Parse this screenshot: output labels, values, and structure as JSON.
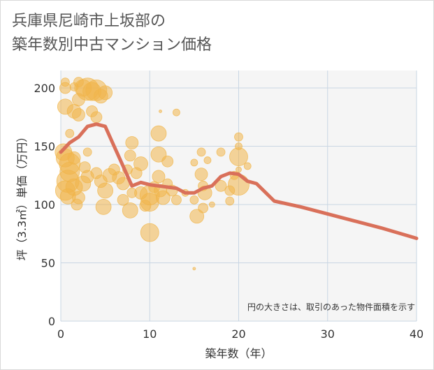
{
  "title_line1": "兵庫県尼崎市上坂部の",
  "title_line2": "築年数別中古マンション価格",
  "chart_data": {
    "type": "scatter",
    "title": "兵庫県尼崎市上坂部の築年数別中古マンション価格",
    "xlabel": "築年数（年）",
    "ylabel": "坪（3.3㎡）単価（万円）",
    "xlim": [
      0,
      40
    ],
    "ylim": [
      0,
      215
    ],
    "xticks": [
      0,
      10,
      20,
      30,
      40
    ],
    "yticks": [
      0,
      50,
      100,
      150,
      200
    ],
    "grid": true,
    "note": "円の大きさは、取引のあった物件面積を示す",
    "colors": {
      "bubble": "#f0b54a",
      "line": "#d9705a",
      "grid": "#c9d6e3",
      "plot_bg": "#f5f5f5"
    },
    "series": [
      {
        "kind": "bubble",
        "points": [
          {
            "x": 0.5,
            "y": 205,
            "s": 6
          },
          {
            "x": 0.5,
            "y": 200,
            "s": 8
          },
          {
            "x": 1.5,
            "y": 201,
            "s": 6
          },
          {
            "x": 2,
            "y": 205,
            "s": 7
          },
          {
            "x": 2.5,
            "y": 200,
            "s": 12
          },
          {
            "x": 3,
            "y": 199,
            "s": 16
          },
          {
            "x": 3.5,
            "y": 197,
            "s": 13
          },
          {
            "x": 4,
            "y": 198,
            "s": 15
          },
          {
            "x": 4.5,
            "y": 193,
            "s": 10
          },
          {
            "x": 5,
            "y": 196,
            "s": 10
          },
          {
            "x": 2,
            "y": 190,
            "s": 9
          },
          {
            "x": 0.5,
            "y": 184,
            "s": 11
          },
          {
            "x": 1.5,
            "y": 180,
            "s": 10
          },
          {
            "x": 2,
            "y": 177,
            "s": 9
          },
          {
            "x": 3.5,
            "y": 180,
            "s": 8
          },
          {
            "x": 4,
            "y": 175,
            "s": 8
          },
          {
            "x": 1,
            "y": 161,
            "s": 6
          },
          {
            "x": 0.3,
            "y": 145,
            "s": 12
          },
          {
            "x": 0.5,
            "y": 140,
            "s": 13
          },
          {
            "x": 1,
            "y": 135,
            "s": 15
          },
          {
            "x": 1,
            "y": 128,
            "s": 14
          },
          {
            "x": 0.8,
            "y": 120,
            "s": 16
          },
          {
            "x": 0.5,
            "y": 112,
            "s": 14
          },
          {
            "x": 0.8,
            "y": 107,
            "s": 11
          },
          {
            "x": 1.5,
            "y": 115,
            "s": 12
          },
          {
            "x": 1.5,
            "y": 140,
            "s": 9
          },
          {
            "x": 2,
            "y": 106,
            "s": 9
          },
          {
            "x": 1.8,
            "y": 100,
            "s": 8
          },
          {
            "x": 2.5,
            "y": 118,
            "s": 11
          },
          {
            "x": 2.7,
            "y": 132,
            "s": 8
          },
          {
            "x": 3,
            "y": 124,
            "s": 9
          },
          {
            "x": 3,
            "y": 145,
            "s": 6
          },
          {
            "x": 4,
            "y": 127,
            "s": 8
          },
          {
            "x": 4.5,
            "y": 120,
            "s": 9
          },
          {
            "x": 5,
            "y": 112,
            "s": 11
          },
          {
            "x": 4.8,
            "y": 98,
            "s": 11
          },
          {
            "x": 5.5,
            "y": 125,
            "s": 10
          },
          {
            "x": 6,
            "y": 130,
            "s": 8
          },
          {
            "x": 6.5,
            "y": 123,
            "s": 9
          },
          {
            "x": 7,
            "y": 118,
            "s": 9
          },
          {
            "x": 7.5,
            "y": 130,
            "s": 7
          },
          {
            "x": 7,
            "y": 104,
            "s": 8
          },
          {
            "x": 7.8,
            "y": 142,
            "s": 8
          },
          {
            "x": 8,
            "y": 153,
            "s": 9
          },
          {
            "x": 8,
            "y": 110,
            "s": 7
          },
          {
            "x": 7.8,
            "y": 95,
            "s": 11
          },
          {
            "x": 8.5,
            "y": 127,
            "s": 8
          },
          {
            "x": 9,
            "y": 135,
            "s": 10
          },
          {
            "x": 9,
            "y": 110,
            "s": 9
          },
          {
            "x": 9.5,
            "y": 99,
            "s": 8
          },
          {
            "x": 10,
            "y": 108,
            "s": 14
          },
          {
            "x": 10,
            "y": 102,
            "s": 13
          },
          {
            "x": 10,
            "y": 76,
            "s": 13
          },
          {
            "x": 10.5,
            "y": 115,
            "s": 8
          },
          {
            "x": 11,
            "y": 161,
            "s": 11
          },
          {
            "x": 11,
            "y": 143,
            "s": 11
          },
          {
            "x": 11,
            "y": 124,
            "s": 9
          },
          {
            "x": 11.2,
            "y": 112,
            "s": 9
          },
          {
            "x": 11.5,
            "y": 106,
            "s": 10
          },
          {
            "x": 12,
            "y": 137,
            "s": 8
          },
          {
            "x": 12,
            "y": 118,
            "s": 7
          },
          {
            "x": 12.5,
            "y": 112,
            "s": 8
          },
          {
            "x": 13,
            "y": 104,
            "s": 7
          },
          {
            "x": 13,
            "y": 179,
            "s": 5
          },
          {
            "x": 11.2,
            "y": 180,
            "s": 2
          },
          {
            "x": 14,
            "y": 110,
            "s": 5
          },
          {
            "x": 15,
            "y": 136,
            "s": 5
          },
          {
            "x": 15,
            "y": 104,
            "s": 6
          },
          {
            "x": 15.3,
            "y": 90,
            "s": 10
          },
          {
            "x": 15.8,
            "y": 145,
            "s": 6
          },
          {
            "x": 15.8,
            "y": 126,
            "s": 9
          },
          {
            "x": 16,
            "y": 116,
            "s": 7
          },
          {
            "x": 16.2,
            "y": 110,
            "s": 10
          },
          {
            "x": 16,
            "y": 97,
            "s": 7
          },
          {
            "x": 16.5,
            "y": 138,
            "s": 5
          },
          {
            "x": 17,
            "y": 100,
            "s": 4
          },
          {
            "x": 18,
            "y": 145,
            "s": 6
          },
          {
            "x": 18,
            "y": 116,
            "s": 8
          },
          {
            "x": 19,
            "y": 112,
            "s": 7
          },
          {
            "x": 19,
            "y": 103,
            "s": 6
          },
          {
            "x": 19.5,
            "y": 125,
            "s": 6
          },
          {
            "x": 20,
            "y": 158,
            "s": 6
          },
          {
            "x": 20,
            "y": 150,
            "s": 5
          },
          {
            "x": 20,
            "y": 141,
            "s": 13
          },
          {
            "x": 20,
            "y": 117,
            "s": 15
          },
          {
            "x": 20,
            "y": 130,
            "s": 4
          },
          {
            "x": 21,
            "y": 133,
            "s": 5
          },
          {
            "x": 15,
            "y": 45,
            "s": 2
          }
        ]
      },
      {
        "kind": "line",
        "name": "",
        "x": [
          0,
          1,
          2,
          3,
          4,
          5,
          6,
          7,
          8,
          9,
          10,
          11,
          12,
          13,
          14,
          15,
          16,
          17,
          18,
          19,
          20,
          21,
          22,
          24,
          27,
          30,
          33,
          36,
          40
        ],
        "y": [
          145,
          153,
          158,
          167,
          169,
          167,
          150,
          133,
          116,
          119,
          117,
          116,
          115,
          114,
          110,
          110,
          114,
          116,
          124,
          127,
          126,
          120,
          118,
          103,
          98,
          92,
          86,
          80,
          71
        ]
      }
    ]
  }
}
